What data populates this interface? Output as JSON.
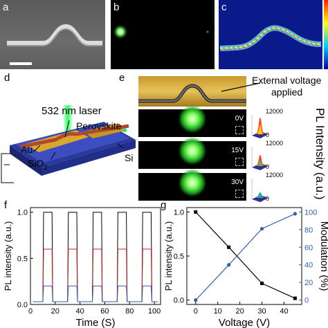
{
  "panels": {
    "a": {
      "label": "a"
    },
    "b": {
      "label": "b"
    },
    "c": {
      "label": "c"
    },
    "d": {
      "label": "d",
      "laser": "532 nm laser",
      "perovskite": "Perovskite",
      "au": "Au",
      "sio2": "SiO",
      "sio2_sub": "2",
      "si": "Si"
    },
    "e": {
      "label": "e",
      "annotation_line1": "External voltage",
      "annotation_line2": "applied",
      "voltages": [
        "0V",
        "15V",
        "30V"
      ],
      "inset_max": "12000",
      "inset_zero": "0",
      "ylabel": "PL Intensity (a.u.)"
    },
    "f": {
      "label": "f"
    },
    "g": {
      "label": "g"
    }
  },
  "colors": {
    "accent_blue": "#2f5fb0",
    "red": "#cc2222",
    "black": "#000000",
    "laser_green": "#33ff66"
  },
  "chart_data": [
    {
      "id": "f",
      "type": "line",
      "xlabel": "Time (S)",
      "ylabel": "PL intensity (a.u.)",
      "xlim": [
        0,
        105
      ],
      "ylim": [
        0,
        1.05
      ],
      "xticks": [
        0,
        20,
        40,
        60,
        80,
        100
      ],
      "yticks": [
        0.0,
        0.5,
        1.0
      ],
      "pulses": [
        [
          10,
          18
        ],
        [
          30,
          38
        ],
        [
          50,
          58
        ],
        [
          70,
          78
        ],
        [
          90,
          98
        ]
      ],
      "series": [
        {
          "color": "#000000",
          "high": 1.0,
          "low": 0.03
        },
        {
          "color": "#cc2222",
          "high": 0.6,
          "low": 0.03
        },
        {
          "color": "#2f5fb0",
          "high": 0.2,
          "low": 0.03
        }
      ]
    },
    {
      "id": "g",
      "type": "line",
      "xlabel": "Voltage (V)",
      "ylabel": "PL intensity (a.u.)",
      "y2label": "Modulation (%)",
      "xlim": [
        -4,
        48
      ],
      "ylim": [
        -0.05,
        1.05
      ],
      "y2lim": [
        -5,
        105
      ],
      "xticks": [
        0,
        10,
        20,
        30,
        40
      ],
      "yticks": [
        0.0,
        0.5,
        1.0
      ],
      "y2ticks": [
        0,
        20,
        40,
        60,
        80,
        100
      ],
      "x": [
        0,
        15,
        30,
        45
      ],
      "series": [
        {
          "axis": "left",
          "color": "#000000",
          "values": [
            1.0,
            0.6,
            0.19,
            0.02
          ]
        },
        {
          "axis": "right",
          "color": "#2f5fb0",
          "values": [
            0,
            40,
            81,
            98
          ]
        }
      ]
    }
  ]
}
